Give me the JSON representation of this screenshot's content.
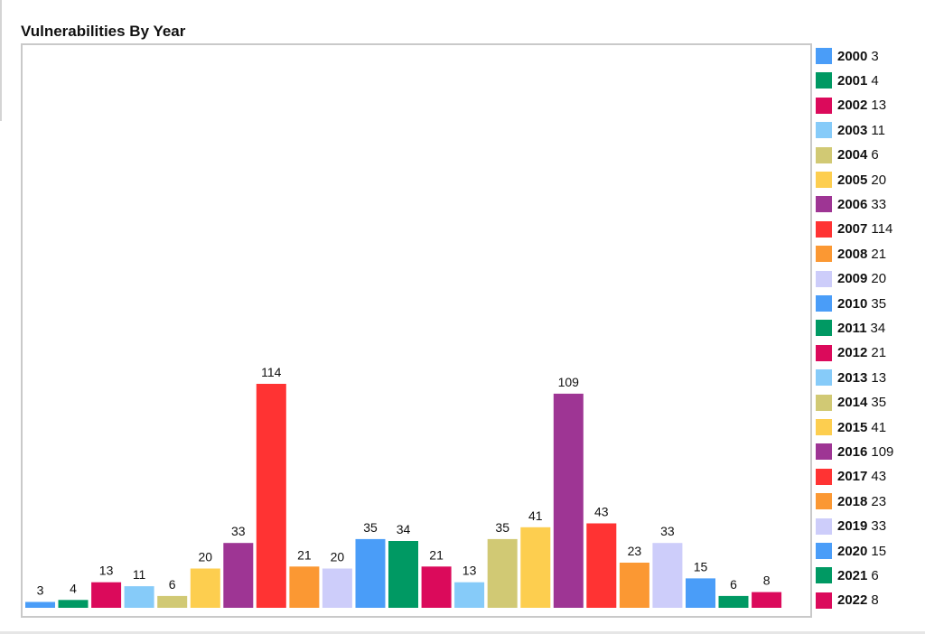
{
  "title": "Vulnerabilities By Year",
  "chart_data": {
    "type": "bar",
    "title": "Vulnerabilities By Year",
    "xlabel": "",
    "ylabel": "",
    "ylim": [
      0,
      120
    ],
    "grid": false,
    "legend_position": "right",
    "categories": [
      "2000",
      "2001",
      "2002",
      "2003",
      "2004",
      "2005",
      "2006",
      "2007",
      "2008",
      "2009",
      "2010",
      "2011",
      "2012",
      "2013",
      "2014",
      "2015",
      "2016",
      "2017",
      "2018",
      "2019",
      "2020",
      "2021",
      "2022"
    ],
    "values": [
      3,
      4,
      13,
      11,
      6,
      20,
      33,
      114,
      21,
      20,
      35,
      34,
      21,
      13,
      35,
      41,
      109,
      43,
      23,
      33,
      15,
      6,
      8
    ],
    "colors": [
      "#4a9df8",
      "#009963",
      "#db0a5b",
      "#86cbf9",
      "#d1c974",
      "#fdce4f",
      "#9e3594",
      "#ff3333",
      "#fb9833",
      "#cdcdfa",
      "#4a9df8",
      "#009963",
      "#db0a5b",
      "#86cbf9",
      "#d1c974",
      "#fdce4f",
      "#9e3594",
      "#ff3333",
      "#fb9833",
      "#cdcdfa",
      "#4a9df8",
      "#009963",
      "#db0a5b"
    ]
  }
}
